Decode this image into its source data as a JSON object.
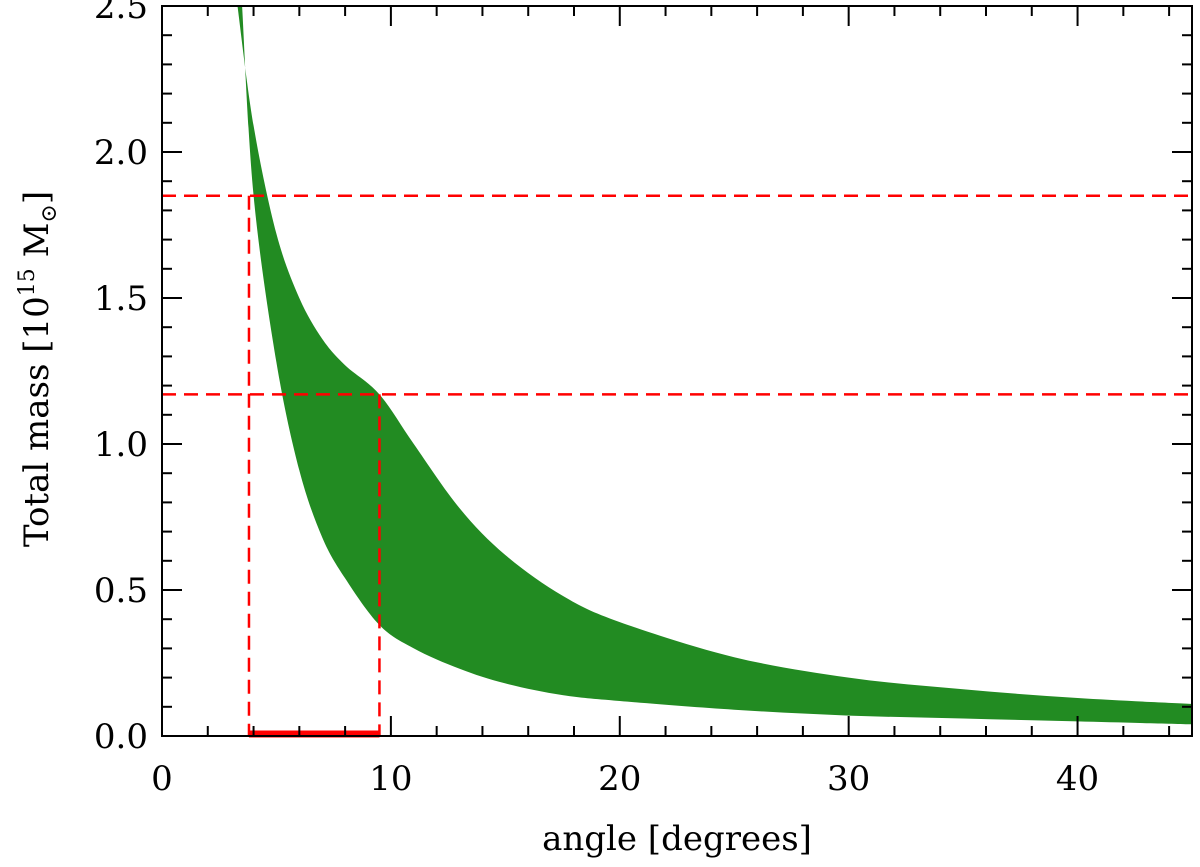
{
  "chart_data": {
    "type": "area",
    "xlabel": "angle [degrees]",
    "ylabel": {
      "prefix": "Total mass [10",
      "exponent": "15",
      "unit": " M",
      "unit_subscript": "⊙",
      "suffix": "]"
    },
    "xlim": [
      0,
      45
    ],
    "ylim": [
      0,
      2.5
    ],
    "x_ticks": [
      {
        "value": 0,
        "label": "0"
      },
      {
        "value": 10,
        "label": "10"
      },
      {
        "value": 20,
        "label": "20"
      },
      {
        "value": 30,
        "label": "30"
      },
      {
        "value": 40,
        "label": "40"
      }
    ],
    "y_ticks": [
      {
        "value": 0.0,
        "label": "0.0"
      },
      {
        "value": 0.5,
        "label": "0.5"
      },
      {
        "value": 1.0,
        "label": "1.0"
      },
      {
        "value": 1.5,
        "label": "1.5"
      },
      {
        "value": 2.0,
        "label": "2.0"
      },
      {
        "value": 2.5,
        "label": "2.5"
      }
    ],
    "x_minor_step": 2,
    "y_minor_step": 0.1,
    "grid": false,
    "band": {
      "color": "#228B22",
      "upper": [
        {
          "x": 3.3,
          "y": 2.5
        },
        {
          "x": 4,
          "y": 2.09
        },
        {
          "x": 5,
          "y": 1.72
        },
        {
          "x": 6,
          "y": 1.5
        },
        {
          "x": 7,
          "y": 1.36
        },
        {
          "x": 8,
          "y": 1.27
        },
        {
          "x": 9.5,
          "y": 1.17
        },
        {
          "x": 11,
          "y": 1.0
        },
        {
          "x": 13,
          "y": 0.78
        },
        {
          "x": 15,
          "y": 0.62
        },
        {
          "x": 17.5,
          "y": 0.48
        },
        {
          "x": 20,
          "y": 0.39
        },
        {
          "x": 25,
          "y": 0.27
        },
        {
          "x": 30,
          "y": 0.2
        },
        {
          "x": 35,
          "y": 0.16
        },
        {
          "x": 40,
          "y": 0.13
        },
        {
          "x": 45,
          "y": 0.11
        }
      ],
      "lower": [
        {
          "x": 3.5,
          "y": 2.5
        },
        {
          "x": 4,
          "y": 1.85
        },
        {
          "x": 5,
          "y": 1.28
        },
        {
          "x": 6,
          "y": 0.91
        },
        {
          "x": 7,
          "y": 0.68
        },
        {
          "x": 8,
          "y": 0.54
        },
        {
          "x": 9.5,
          "y": 0.38
        },
        {
          "x": 11,
          "y": 0.3
        },
        {
          "x": 13,
          "y": 0.23
        },
        {
          "x": 15,
          "y": 0.18
        },
        {
          "x": 17.5,
          "y": 0.14
        },
        {
          "x": 20,
          "y": 0.12
        },
        {
          "x": 25,
          "y": 0.09
        },
        {
          "x": 30,
          "y": 0.07
        },
        {
          "x": 35,
          "y": 0.06
        },
        {
          "x": 40,
          "y": 0.05
        },
        {
          "x": 45,
          "y": 0.04
        }
      ]
    },
    "reference_lines": {
      "color": "#ff0000",
      "horizontal": [
        1.85,
        1.17
      ],
      "vertical": [
        {
          "x": 3.8,
          "y_top": 1.85
        },
        {
          "x": 9.5,
          "y_top": 1.17
        }
      ],
      "range_bar": {
        "x_start": 3.8,
        "x_end": 9.5,
        "y": 0.0
      }
    }
  }
}
